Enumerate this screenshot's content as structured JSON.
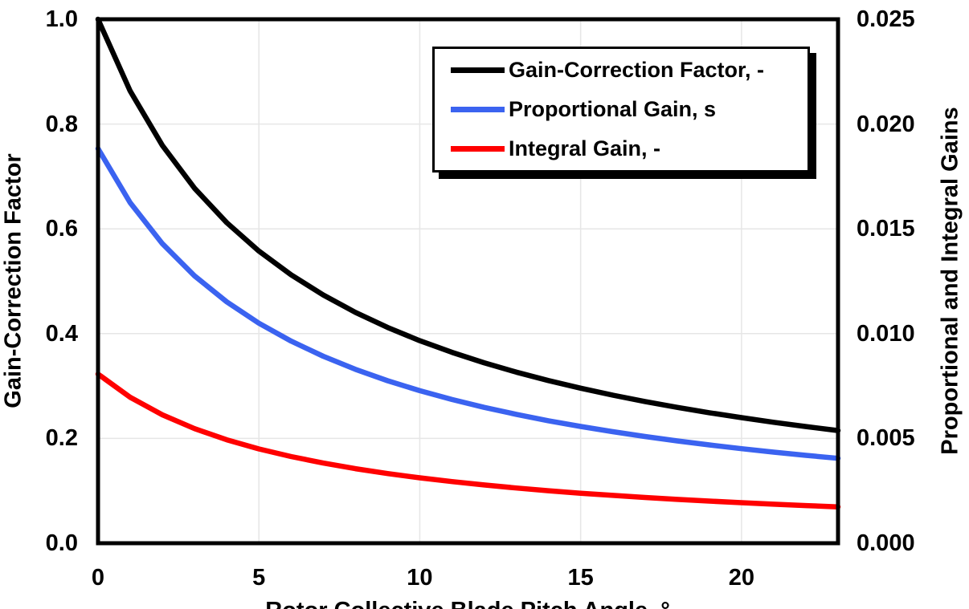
{
  "chart_data": {
    "type": "line",
    "title": "",
    "xlabel": "Rotor Collective Blade Pitch Angle, °",
    "ylabel_left": "Gain-Correction Factor",
    "ylabel_right": "Proportional and Integral Gains",
    "xlim": [
      0,
      23
    ],
    "ylim_left": [
      0.0,
      1.0
    ],
    "ylim_right": [
      0.0,
      0.025
    ],
    "grid": true,
    "grid_color": "#e6e6e6",
    "legend_position": "top-right-inside",
    "x_tick_labels": [
      "0",
      "5",
      "10",
      "15",
      "20"
    ],
    "x_tick_values": [
      0,
      5,
      10,
      15,
      20
    ],
    "y_tick_labels_left": [
      "0.0",
      "0.2",
      "0.4",
      "0.6",
      "0.8",
      "1.0"
    ],
    "y_tick_values_left": [
      0.0,
      0.2,
      0.4,
      0.6,
      0.8,
      1.0
    ],
    "y_tick_labels_right": [
      "0.000",
      "0.005",
      "0.010",
      "0.015",
      "0.020",
      "0.025"
    ],
    "y_tick_values_right": [
      0.0,
      0.005,
      0.01,
      0.015,
      0.02,
      0.025
    ],
    "x": [
      0,
      1,
      2,
      3,
      4,
      5,
      6,
      7,
      8,
      9,
      10,
      11,
      12,
      13,
      14,
      15,
      16,
      17,
      18,
      19,
      20,
      21,
      22,
      23
    ],
    "series": [
      {
        "name": "Gain-Correction Factor, -",
        "slug": "gain-correction-factor",
        "color": "#000000",
        "axis": "left",
        "values": [
          1.0,
          0.863056,
          0.759103,
          0.677499,
          0.611738,
          0.557614,
          0.512287,
          0.473775,
          0.440651,
          0.411853,
          0.38659,
          0.364247,
          0.344345,
          0.326506,
          0.310423,
          0.295851,
          0.282585,
          0.270459,
          0.25933,
          0.24908,
          0.239611,
          0.230834,
          0.222678,
          0.215079
        ]
      },
      {
        "name": "Proportional Gain, s",
        "slug": "proportional-gain",
        "color": "#3B63F0",
        "axis": "right",
        "values": [
          0.018827,
          0.016249,
          0.014291,
          0.012755,
          0.011517,
          0.010498,
          0.009645,
          0.00892,
          0.008296,
          0.007754,
          0.007278,
          0.006858,
          0.006483,
          0.006147,
          0.005844,
          0.00557,
          0.00532,
          0.005092,
          0.004882,
          0.004689,
          0.004511,
          0.004346,
          0.004192,
          0.004049
        ]
      },
      {
        "name": "Integral Gain, -",
        "slug": "integral-gain",
        "color": "#FF0000",
        "axis": "right",
        "values": [
          0.008069,
          0.006964,
          0.006125,
          0.005467,
          0.004936,
          0.004499,
          0.004134,
          0.003823,
          0.003556,
          0.003323,
          0.003119,
          0.002939,
          0.002778,
          0.002634,
          0.002505,
          0.002387,
          0.00228,
          0.002182,
          0.002092,
          0.00201,
          0.001933,
          0.001862,
          0.001797,
          0.001735
        ]
      }
    ],
    "frame_color": "#000000",
    "background_color": "#ffffff"
  }
}
